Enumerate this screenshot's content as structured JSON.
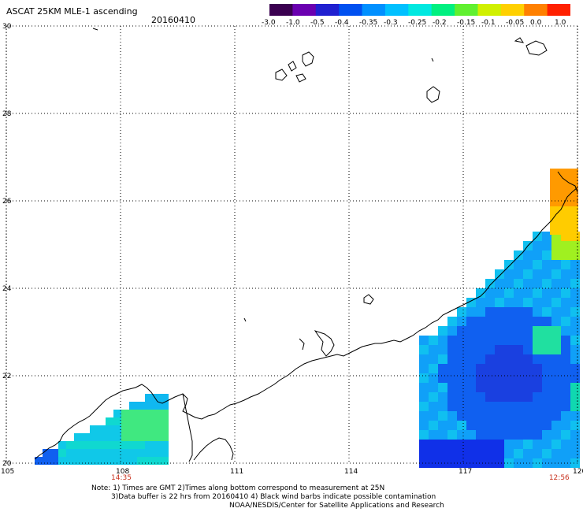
{
  "header": {
    "title": "ASCAT 25KM MLE-1 ascending",
    "date": "20160410"
  },
  "colorbar": {
    "tick_labels": [
      "-3.0",
      "-1.0",
      "-0.5",
      "-0.4",
      "-0.35",
      "-0.3",
      "-0.25",
      "-0.2",
      "-0.15",
      "-0.1",
      "-0.05",
      "0.0",
      "1.0"
    ],
    "colors": [
      "#3a0050",
      "#6a00b0",
      "#2020d0",
      "#0050f0",
      "#0090ff",
      "#00c0ff",
      "#00e8e0",
      "#00f080",
      "#60f030",
      "#d0f000",
      "#ffd000",
      "#ff8000",
      "#ff2000"
    ]
  },
  "map": {
    "lon_labels": [
      "105",
      "108",
      "111",
      "114",
      "117",
      "120"
    ],
    "lat_labels": [
      "20",
      "22",
      "24",
      "26",
      "28",
      "30"
    ],
    "time_labels": [
      {
        "lon": 108,
        "text": "14:35"
      },
      {
        "lon": 119.5,
        "text": "12:56"
      }
    ]
  },
  "notes": {
    "line1": "Note: 1) Times are GMT 2)Times along bottom correspond to measurement at 25N",
    "line2": "3)Data buffer is 22 hrs from 20160410 4) Black wind barbs indicate possible contamination",
    "line3": "NOAA/NESDIS/Center for Satellite Applications and Research"
  }
}
